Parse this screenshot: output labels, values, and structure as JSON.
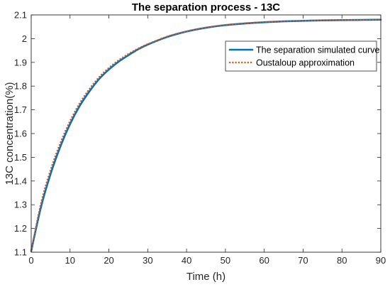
{
  "chart_data": {
    "type": "line",
    "title": "The separation process - 13C",
    "xlabel": "Time (h)",
    "ylabel": "13C concentration(%)",
    "xlim": [
      0,
      90
    ],
    "ylim": [
      1.1,
      2.1
    ],
    "xticks": [
      0,
      10,
      20,
      30,
      40,
      50,
      60,
      70,
      80,
      90
    ],
    "yticks": [
      1.1,
      1.2,
      1.3,
      1.4,
      1.5,
      1.6,
      1.7,
      1.8,
      1.9,
      2,
      2.1
    ],
    "grid": false,
    "box": true,
    "legend_position": "top-right",
    "series": [
      {
        "name": "The separation simulated curve",
        "color": "#0072BD",
        "style": "solid",
        "x": [
          0,
          2.5,
          5,
          7.5,
          10,
          12.5,
          15,
          17.5,
          20,
          22.5,
          25,
          27.5,
          30,
          35,
          40,
          45,
          50,
          55,
          60,
          65,
          70,
          75,
          80,
          85,
          90
        ],
        "y": [
          1.105,
          1.289,
          1.43,
          1.545,
          1.64,
          1.717,
          1.778,
          1.83,
          1.87,
          1.903,
          1.93,
          1.955,
          1.975,
          2.007,
          2.03,
          2.046,
          2.057,
          2.064,
          2.069,
          2.073,
          2.075,
          2.077,
          2.078,
          2.079,
          2.08
        ]
      },
      {
        "name": "Oustaloup approximation",
        "color": "#D95319",
        "style": "dotted",
        "x": [
          0,
          2.5,
          5,
          7.5,
          10,
          12.5,
          15,
          17.5,
          20,
          22.5,
          25,
          27.5,
          30,
          35,
          40,
          45,
          50,
          55,
          60,
          65,
          70,
          75,
          80,
          85,
          90
        ],
        "y": [
          1.105,
          1.305,
          1.447,
          1.56,
          1.653,
          1.728,
          1.788,
          1.838,
          1.877,
          1.909,
          1.935,
          1.958,
          1.977,
          2.009,
          2.031,
          2.047,
          2.058,
          2.065,
          2.07,
          2.073,
          2.075,
          2.077,
          2.078,
          2.079,
          2.08
        ]
      }
    ]
  }
}
